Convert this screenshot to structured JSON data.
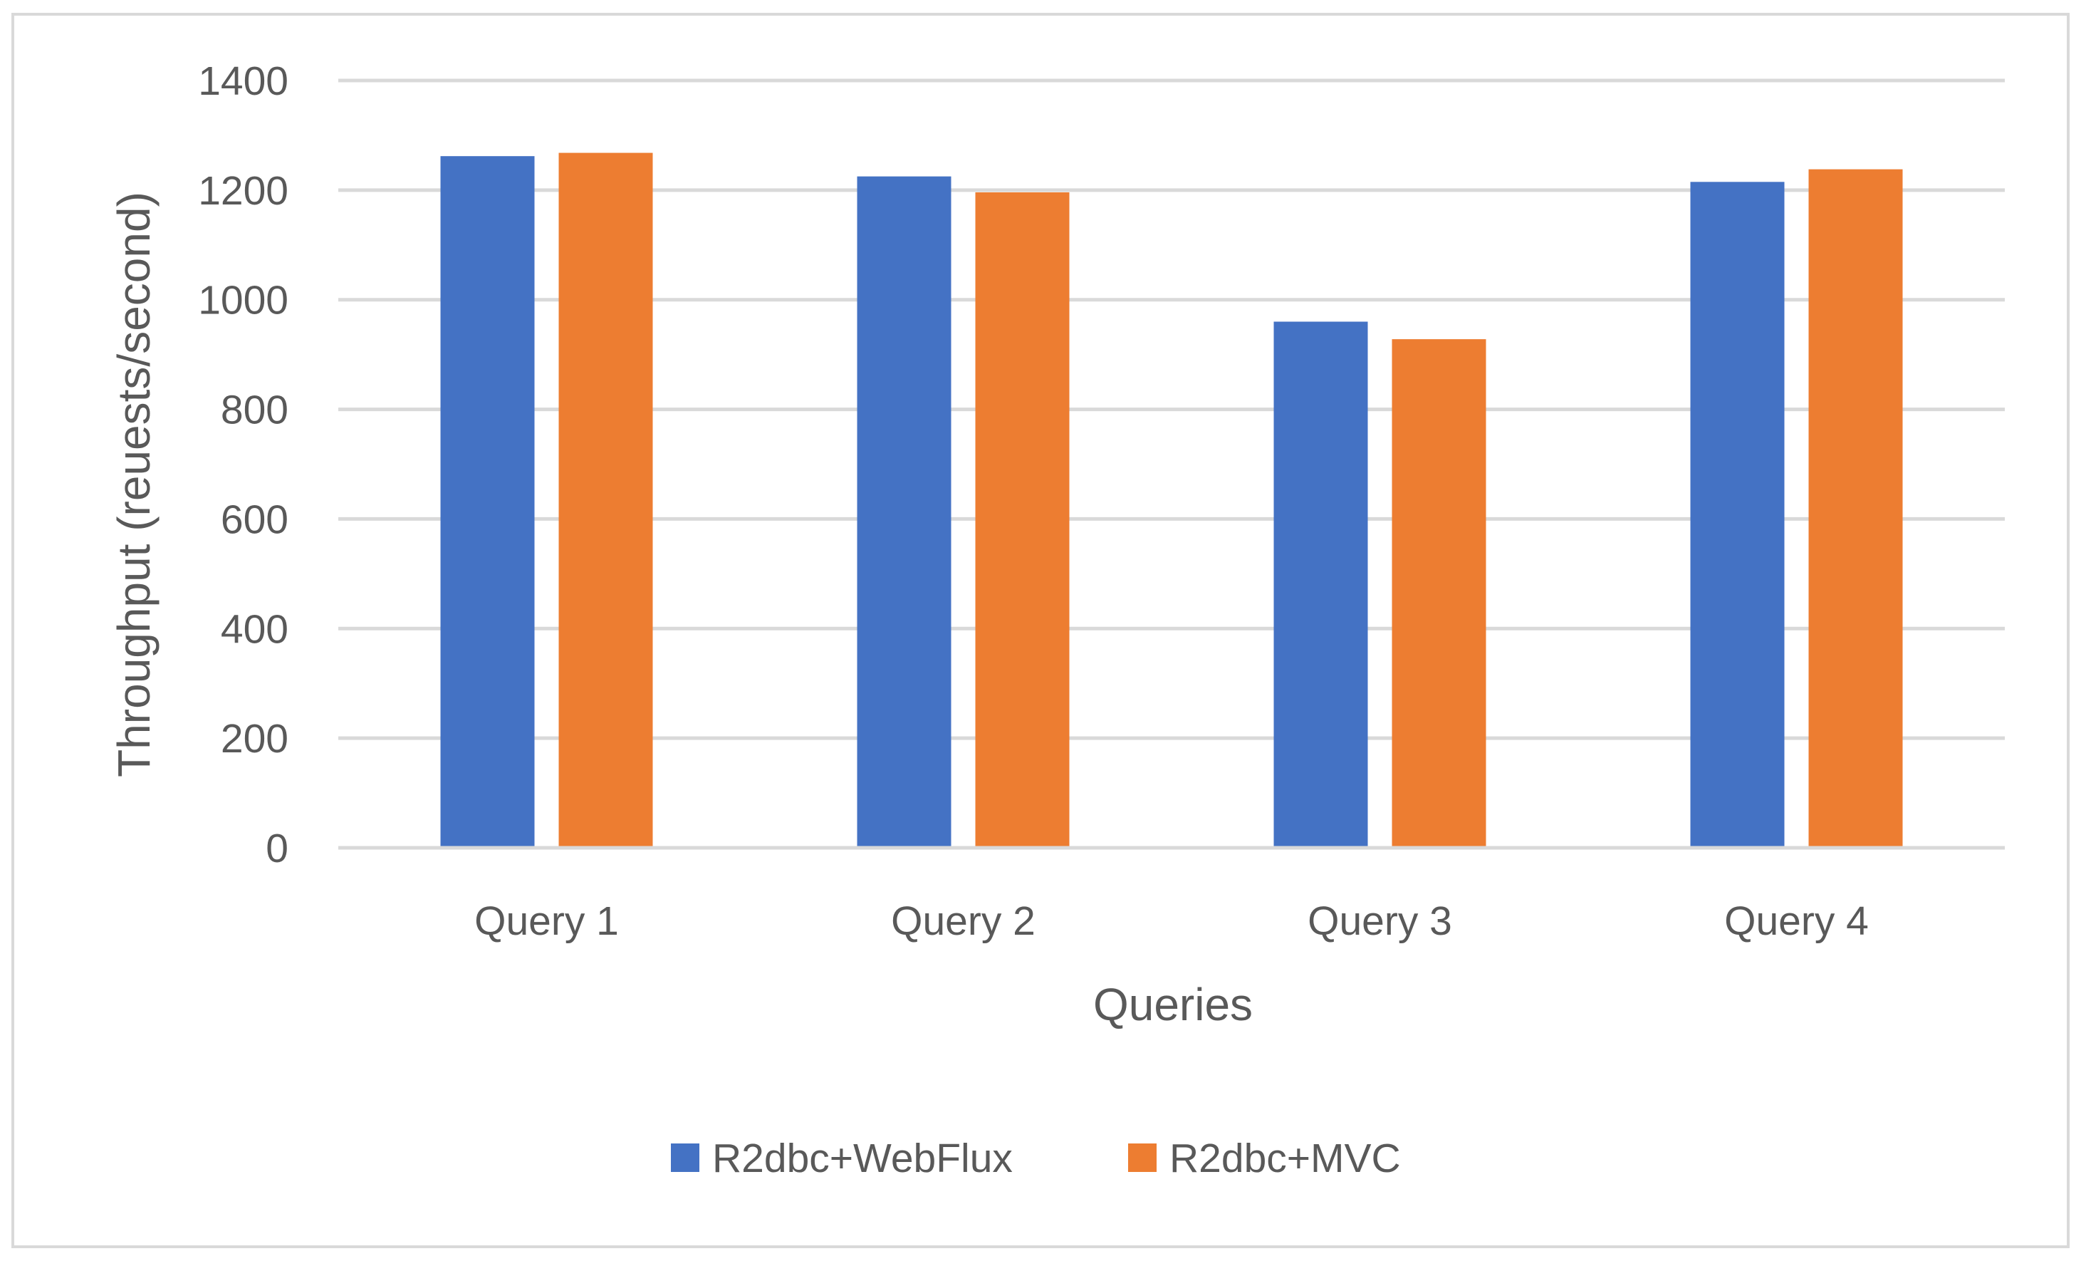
{
  "chart_data": {
    "type": "bar",
    "title": "",
    "xlabel": "Queries",
    "ylabel": "Throughput (reuests/second)",
    "categories": [
      "Query 1",
      "Query 2",
      "Query 3",
      "Query 4"
    ],
    "series": [
      {
        "name": "R2dbc+WebFlux",
        "color": "#4472C4",
        "values": [
          1262,
          1225,
          960,
          1215
        ]
      },
      {
        "name": "R2dbc+MVC",
        "color": "#ED7D31",
        "values": [
          1268,
          1196,
          928,
          1238
        ]
      }
    ],
    "ylim": [
      0,
      1400
    ],
    "yticks": [
      0,
      200,
      400,
      600,
      800,
      1000,
      1200,
      1400
    ],
    "grid": true,
    "gridline_color": "#D9D9D9",
    "legend_position": "bottom"
  }
}
